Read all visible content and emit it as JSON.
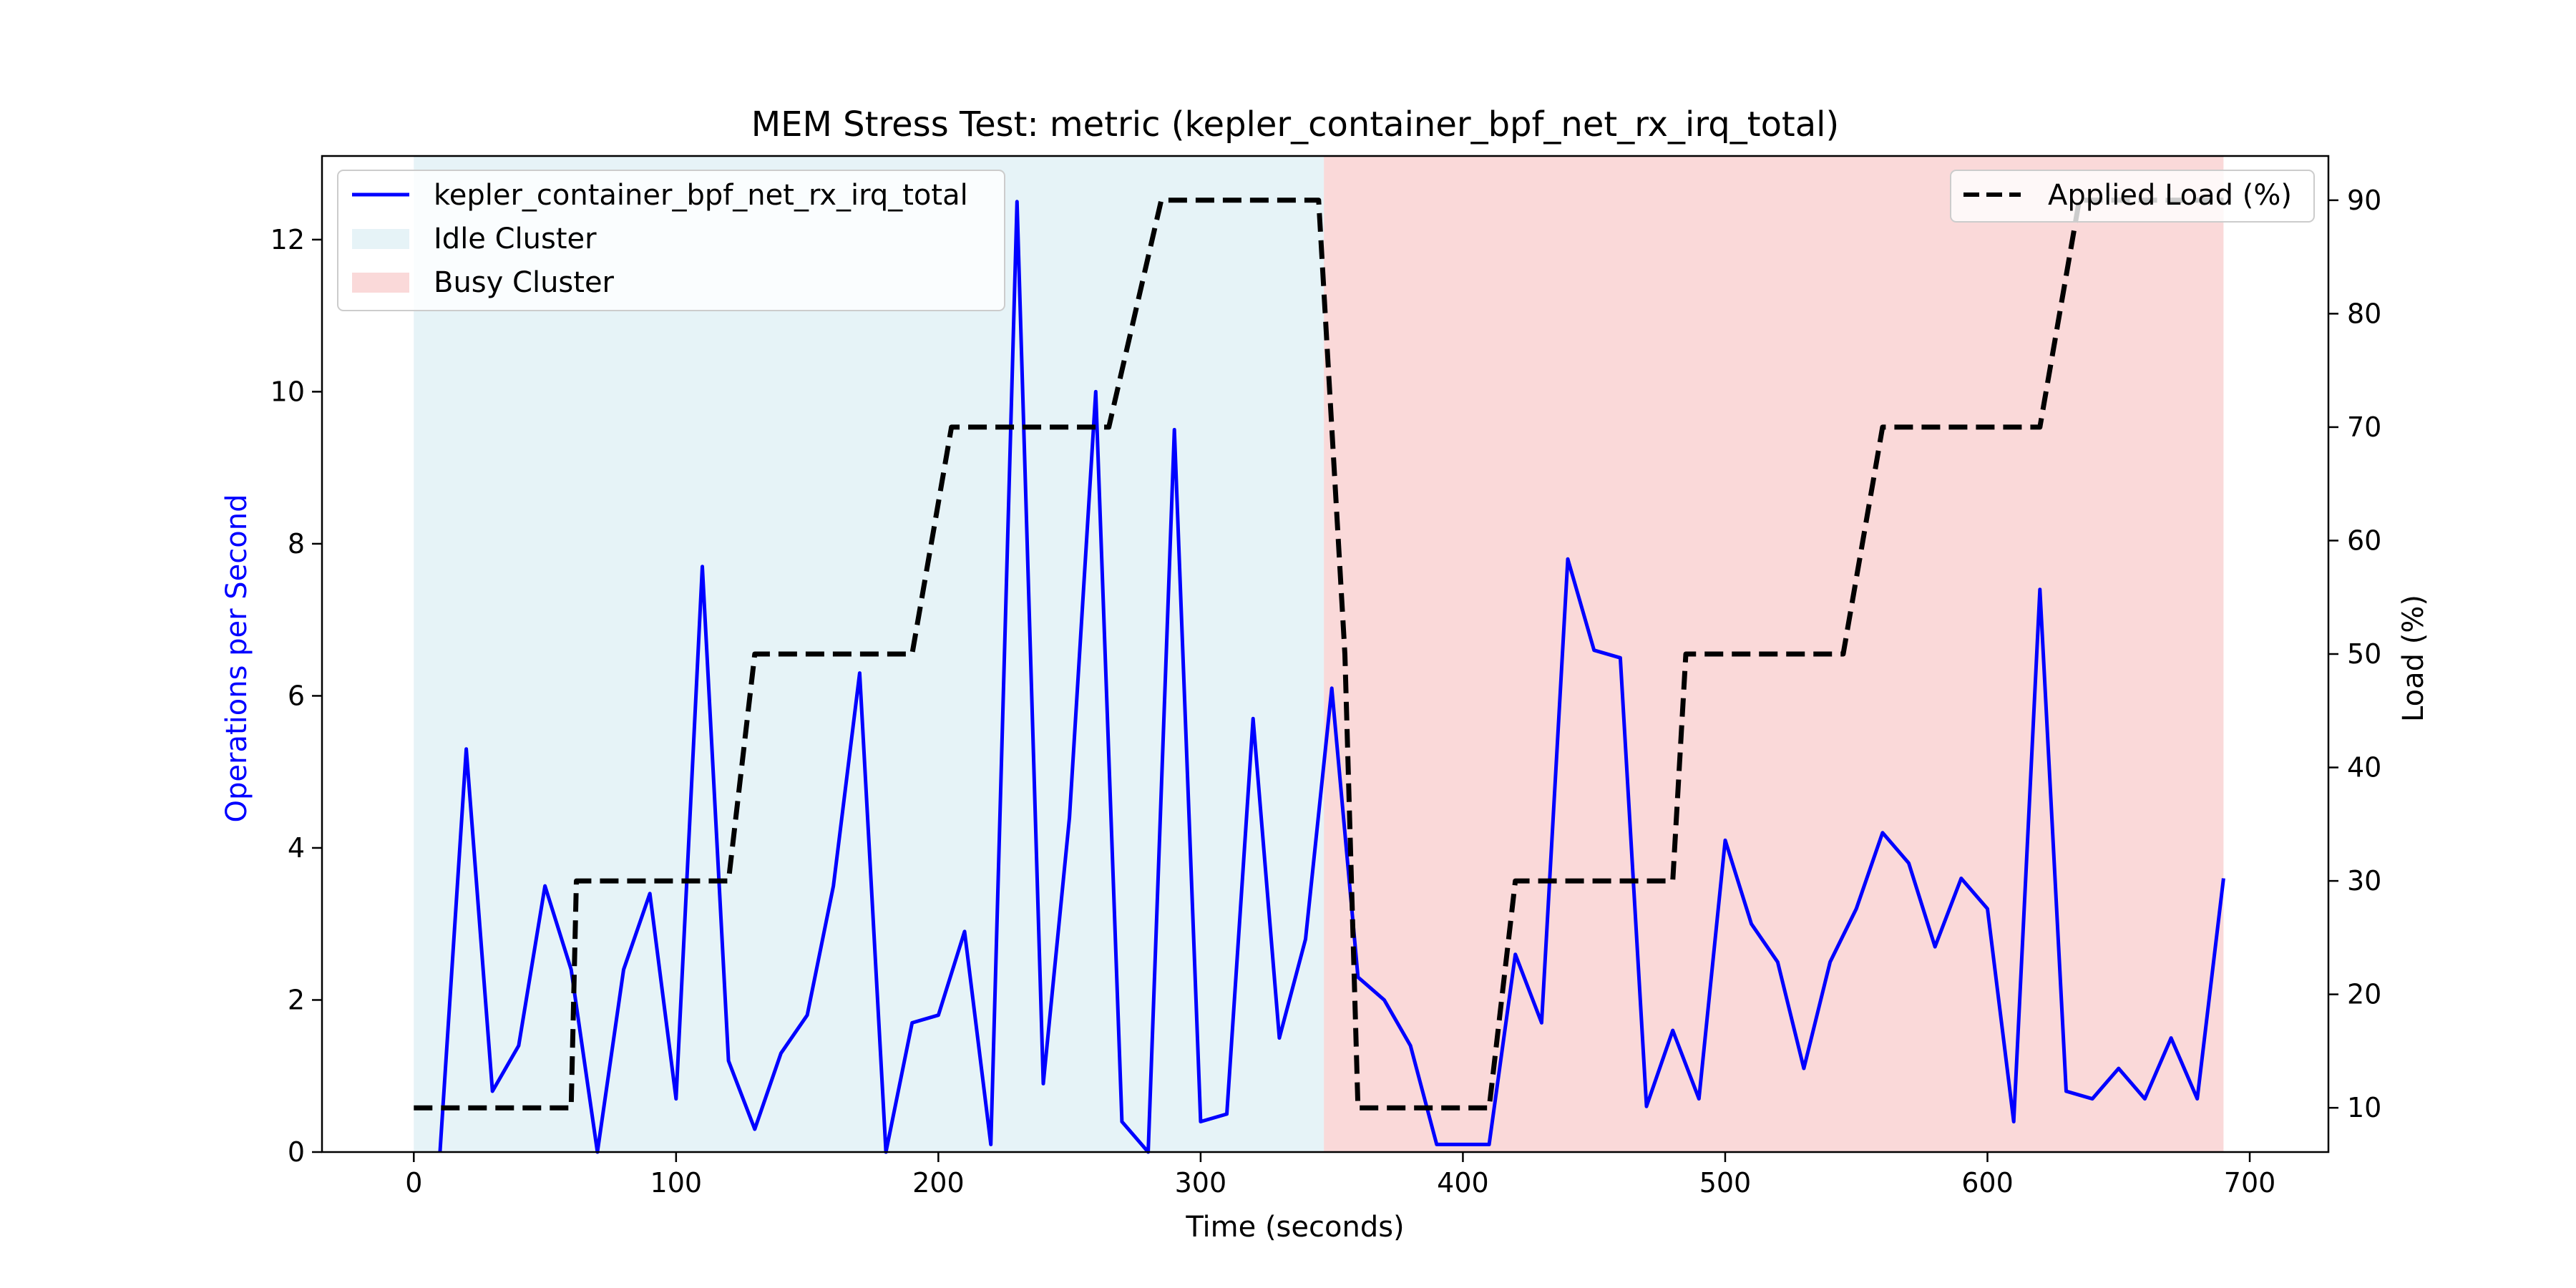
{
  "chart_data": {
    "type": "line",
    "title": "MEM Stress Test: metric (kepler_container_bpf_net_rx_irq_total)",
    "xlabel": "Time (seconds)",
    "ylabel_left": "Operations per Second",
    "ylabel_right": "Load (%)",
    "xlim": [
      -35,
      730
    ],
    "ylim_left": [
      0,
      13.1
    ],
    "ylim_right": [
      6.1,
      93.9
    ],
    "xticks": [
      0,
      100,
      200,
      300,
      400,
      500,
      600,
      700
    ],
    "yticks_left": [
      0,
      2,
      4,
      6,
      8,
      10,
      12
    ],
    "yticks_right": [
      10,
      20,
      30,
      40,
      50,
      60,
      70,
      80,
      90
    ],
    "grid": false,
    "colors": {
      "metric": "#0000ff",
      "load": "#000000",
      "idle": "#add8e6",
      "busy": "#f08080",
      "left_label": "#0000ff"
    },
    "regions": [
      {
        "name": "Idle Cluster",
        "x_start": 0,
        "x_end": 347
      },
      {
        "name": "Busy Cluster",
        "x_start": 347,
        "x_end": 690
      }
    ],
    "series": [
      {
        "name": "kepler_container_bpf_net_rx_irq_total",
        "axis": "left",
        "x": [
          0,
          10,
          20,
          30,
          40,
          50,
          60,
          70,
          80,
          90,
          100,
          110,
          120,
          130,
          140,
          150,
          160,
          170,
          180,
          190,
          200,
          210,
          220,
          230,
          240,
          250,
          260,
          270,
          280,
          290,
          300,
          310,
          320,
          330,
          340,
          350,
          360,
          370,
          380,
          390,
          400,
          410,
          420,
          430,
          440,
          450,
          460,
          470,
          480,
          490,
          500,
          510,
          520,
          530,
          540,
          550,
          560,
          570,
          580,
          590,
          600,
          610,
          620,
          630,
          640,
          650,
          660,
          670,
          680,
          690
        ],
        "values": [
          null,
          0,
          5.3,
          0.8,
          1.4,
          3.5,
          2.4,
          0,
          2.4,
          3.4,
          0.7,
          7.7,
          1.2,
          0.3,
          1.3,
          1.8,
          3.5,
          6.3,
          0,
          1.7,
          1.8,
          2.9,
          0.1,
          12.5,
          0.9,
          4.4,
          10.0,
          0.4,
          0,
          9.5,
          0.4,
          0.5,
          5.7,
          1.5,
          2.8,
          6.1,
          2.3,
          2.0,
          1.4,
          0.1,
          0.1,
          0.1,
          2.6,
          1.7,
          7.8,
          6.6,
          6.5,
          0.6,
          1.6,
          0.7,
          4.1,
          3.0,
          2.5,
          1.1,
          2.5,
          3.2,
          4.2,
          3.8,
          2.7,
          3.6,
          3.2,
          0.4,
          7.4,
          0.8,
          0.7,
          1.1,
          0.7,
          1.5,
          0.7,
          3.6
        ]
      },
      {
        "name": "Applied Load (%)",
        "axis": "right",
        "x": [
          0,
          60,
          62,
          120,
          130,
          190,
          205,
          265,
          285,
          345,
          355,
          360,
          410,
          420,
          480,
          485,
          545,
          560,
          620,
          635,
          640,
          690
        ],
        "values": [
          10,
          10,
          30,
          30,
          50,
          50,
          70,
          70,
          90,
          90,
          50,
          10,
          10,
          30,
          30,
          50,
          50,
          70,
          70,
          90,
          90,
          90
        ]
      }
    ],
    "legend_left": [
      {
        "label": "kepler_container_bpf_net_rx_irq_total",
        "kind": "line"
      },
      {
        "label": "Idle Cluster",
        "kind": "patch-idle"
      },
      {
        "label": "Busy Cluster",
        "kind": "patch-busy"
      }
    ],
    "legend_right": [
      {
        "label": "Applied Load (%)",
        "kind": "dashed"
      }
    ],
    "legend_placement": [
      "upper-left",
      "upper-right"
    ]
  }
}
